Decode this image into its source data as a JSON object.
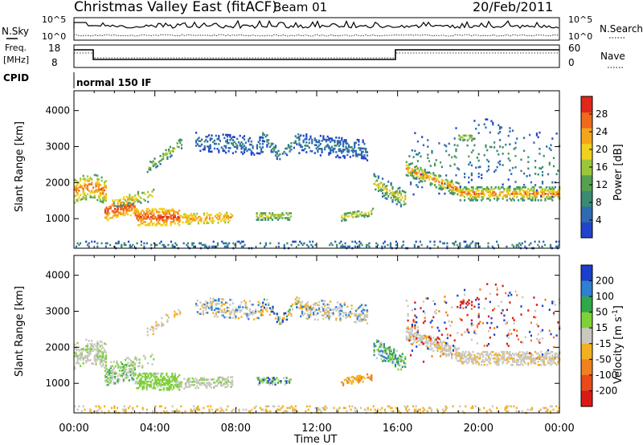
{
  "header": {
    "title": "Christmas Valley East (fitACF)",
    "beam": "Beam 01",
    "date": "20/Feb/2011"
  },
  "nsky_panel": {
    "left_label": "N.Sky",
    "right_label": "N.Search",
    "left_ticks": [
      "10^5",
      "10^0"
    ],
    "right_ticks": [
      "10^5",
      "10^0"
    ]
  },
  "freq_panel": {
    "left_label_1": "Freq.",
    "left_label_2": "[MHz]",
    "right_label": "Nave",
    "left_ticks": [
      "18",
      "8"
    ],
    "right_ticks": [
      "60",
      "0"
    ]
  },
  "cpid": {
    "label": "CPID",
    "mode": "normal 150 IF"
  },
  "colors": {
    "power": [
      "#2244cc",
      "#2f6bb0",
      "#3b8a72",
      "#56a050",
      "#9cc63a",
      "#f0d020",
      "#f3a51c",
      "#ee6a1d",
      "#e1261c"
    ],
    "velocity": [
      "#1a3fc9",
      "#2f7fd3",
      "#2fa84a",
      "#7fd13a",
      "#c8c8c0",
      "#f3b020",
      "#f08020",
      "#e84a1a",
      "#d91a14"
    ]
  },
  "chart_data": [
    {
      "type": "heatmap",
      "name": "power",
      "ylabel": "Slant Range [km]",
      "yticks": [
        1000,
        2000,
        3000,
        4000
      ],
      "ylim": [
        180,
        4550
      ],
      "xlim": [
        0,
        24
      ],
      "colorbar_label": "Power [dB]",
      "colorbar_ticks": [
        4,
        8,
        12,
        16,
        20,
        24,
        28
      ],
      "colorbar_range": [
        0,
        32
      ]
    },
    {
      "type": "heatmap",
      "name": "velocity",
      "xlabel": "Time UT",
      "ylabel": "Slant Range [km]",
      "yticks": [
        1000,
        2000,
        3000,
        4000
      ],
      "ylim": [
        180,
        4550
      ],
      "xlim": [
        0,
        24
      ],
      "xtick_labels": [
        "00:00",
        "04:00",
        "08:00",
        "12:00",
        "16:00",
        "20:00",
        "00:00"
      ],
      "colorbar_label": "Velocity [m s^-1]",
      "colorbar_ticks": [
        "200",
        "100",
        "50",
        "15",
        "-15",
        "-50",
        "-100",
        "-200"
      ]
    }
  ]
}
